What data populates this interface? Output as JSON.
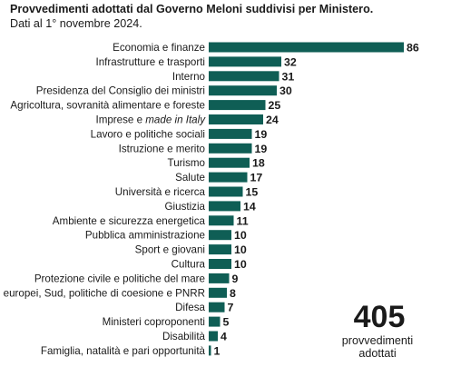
{
  "header": {
    "title": "Provvedimenti adottati dal Governo Meloni suddivisi per Ministero.",
    "subtitle": "Dati al 1° novembre 2024."
  },
  "total": {
    "value": "405",
    "label_line1": "provvedimenti",
    "label_line2": "adottati"
  },
  "colors": {
    "bar": "#0f5e55"
  },
  "chart_data": {
    "type": "bar",
    "orientation": "horizontal",
    "title": "Provvedimenti adottati dal Governo Meloni suddivisi per Ministero.",
    "subtitle": "Dati al 1° novembre 2024.",
    "categories": [
      "Economia e finanze",
      "Infrastrutture e trasporti",
      "Interno",
      "Presidenza del Consiglio dei ministri",
      "Agricoltura, sovranità alimentare e foreste",
      "Imprese e made in Italy",
      "Lavoro e politiche sociali",
      "Istruzione e merito",
      "Turismo",
      "Salute",
      "Università e ricerca",
      "Giustizia",
      "Ambiente e sicurezza energetica",
      "Pubblica amministrazione",
      "Sport e giovani",
      "Cultura",
      "Protezione civile e politiche del mare",
      "Affari europei, Sud, politiche di coesione e PNRR",
      "Difesa",
      "Ministeri coproponenti",
      "Disabilità",
      "Famiglia, natalità e pari opportunità"
    ],
    "values": [
      86,
      32,
      31,
      30,
      25,
      24,
      19,
      19,
      18,
      17,
      15,
      14,
      11,
      10,
      10,
      10,
      9,
      8,
      7,
      5,
      4,
      1
    ],
    "xlim": [
      0,
      86
    ],
    "grid": false,
    "legend": "none"
  }
}
